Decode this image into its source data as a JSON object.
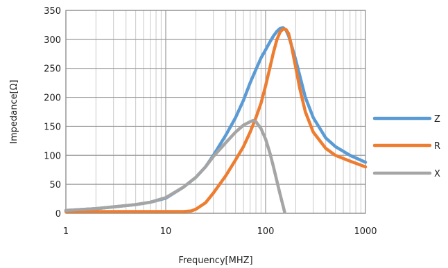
{
  "chart_data": {
    "type": "line",
    "xlabel": "Frequency[MHZ]",
    "ylabel": "Impedance[Ω]",
    "x_scale": "log",
    "xlim": [
      1,
      1000
    ],
    "ylim": [
      0,
      350
    ],
    "x_ticks": [
      1,
      10,
      100,
      1000
    ],
    "x_tick_labels": [
      "1",
      "10",
      "100",
      "1000"
    ],
    "y_ticks": [
      0,
      50,
      100,
      150,
      200,
      250,
      300,
      350
    ],
    "y_tick_labels": [
      "0",
      "50",
      "100",
      "150",
      "200",
      "250",
      "300",
      "350"
    ],
    "grid": true,
    "legend": "right",
    "series": [
      {
        "name": "Z",
        "color": "#5b9bd5",
        "x": [
          1,
          2,
          3,
          5,
          7,
          10,
          15,
          20,
          25,
          30,
          40,
          50,
          60,
          70,
          80,
          90,
          100,
          110,
          120,
          130,
          140,
          150,
          160,
          170,
          180,
          200,
          250,
          300,
          400,
          500,
          700,
          1000
        ],
        "y": [
          5,
          8,
          11,
          15,
          19,
          26,
          45,
          62,
          80,
          100,
          135,
          165,
          195,
          225,
          248,
          268,
          282,
          295,
          306,
          314,
          319,
          320,
          316,
          306,
          292,
          265,
          200,
          165,
          130,
          115,
          100,
          88
        ]
      },
      {
        "name": "R",
        "color": "#ed7d31",
        "x": [
          1,
          5,
          10,
          15,
          18,
          20,
          25,
          30,
          40,
          50,
          60,
          70,
          80,
          90,
          100,
          110,
          120,
          130,
          140,
          150,
          160,
          170,
          180,
          200,
          220,
          250,
          300,
          400,
          500,
          700,
          1000
        ],
        "y": [
          3,
          3,
          3,
          3,
          4,
          7,
          18,
          35,
          65,
          92,
          115,
          140,
          165,
          190,
          220,
          250,
          278,
          300,
          313,
          318,
          317,
          310,
          292,
          252,
          215,
          175,
          140,
          112,
          100,
          90,
          80
        ]
      },
      {
        "name": "X",
        "color": "#a5a5a5",
        "x": [
          1,
          2,
          3,
          5,
          7,
          10,
          15,
          20,
          25,
          30,
          40,
          50,
          60,
          70,
          75,
          80,
          90,
          100,
          110,
          120,
          130,
          140,
          150,
          155
        ],
        "y": [
          5,
          8,
          11,
          15,
          19,
          27,
          45,
          62,
          80,
          98,
          122,
          140,
          152,
          158,
          160,
          158,
          146,
          128,
          105,
          80,
          55,
          32,
          12,
          2
        ]
      }
    ]
  }
}
